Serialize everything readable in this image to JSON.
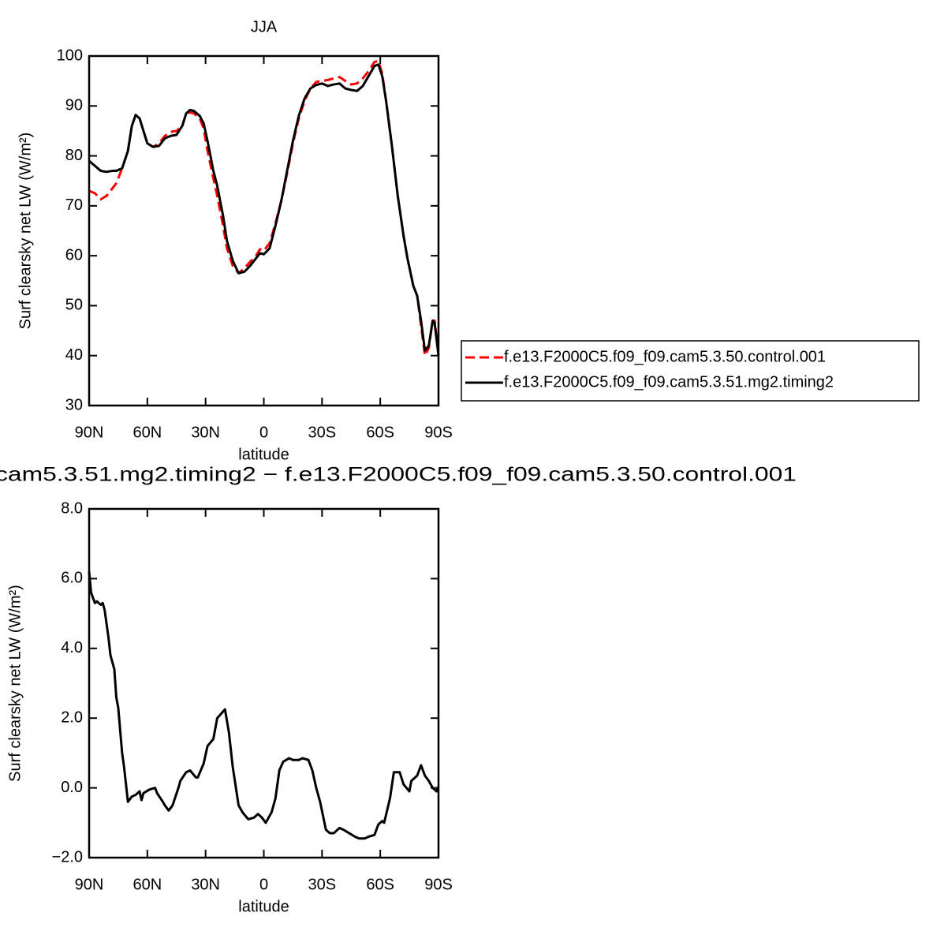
{
  "chart_data": [
    {
      "type": "line",
      "title": "JJA",
      "xlabel": "latitude",
      "ylabel": "Surf clearsky net LW (W/m²)",
      "x": [
        90,
        87,
        84,
        81,
        78,
        76,
        73,
        70,
        68,
        66,
        64,
        62,
        60,
        57,
        54,
        51,
        48,
        45,
        42,
        40,
        38,
        36,
        33,
        31,
        29,
        26,
        24,
        21,
        19,
        16,
        13,
        10,
        7,
        4,
        2,
        0,
        -3,
        -6,
        -9,
        -12,
        -15,
        -18,
        -21,
        -24,
        -27,
        -30,
        -33,
        -36,
        -39,
        -42,
        -45,
        -48,
        -51,
        -54,
        -57,
        -59,
        -61,
        -63,
        -66,
        -69,
        -72,
        -74,
        -77,
        -79,
        -81,
        -83,
        -85,
        -87,
        -88,
        -90
      ],
      "xlim": [
        90,
        -90
      ],
      "xticks": [
        {
          "value": 90,
          "label": "90N"
        },
        {
          "value": 60,
          "label": "60N"
        },
        {
          "value": 30,
          "label": "30N"
        },
        0,
        {
          "value": -30,
          "label": "30S"
        },
        {
          "value": -60,
          "label": "60S"
        },
        {
          "value": -90,
          "label": "90S"
        }
      ],
      "ylim": [
        30,
        100
      ],
      "yticks": [
        30,
        40,
        50,
        60,
        70,
        80,
        90,
        100
      ],
      "legend": "right",
      "series": [
        {
          "name": "f.e13.F2000C5.f09_f09.cam5.3.50.control.001",
          "color": "#ff0000",
          "line_style": "dashed",
          "values": [
            73,
            72.5,
            71.3,
            72,
            73.5,
            74.5,
            77.5,
            81,
            86,
            88.2,
            87.5,
            85,
            82.5,
            81.8,
            82.5,
            84,
            84.8,
            85,
            86,
            88.5,
            88.7,
            88.5,
            87.5,
            85.5,
            81,
            75.5,
            72,
            66,
            61.5,
            58,
            56.5,
            57.5,
            58.8,
            60,
            61.3,
            61,
            62.5,
            66.5,
            71,
            76.5,
            82.5,
            87.5,
            91,
            93.5,
            94.8,
            95,
            95.2,
            95.5,
            95.8,
            95,
            94.3,
            94.5,
            95.5,
            97,
            98.8,
            99,
            96.5,
            91,
            82,
            72,
            64,
            59.5,
            54,
            52,
            46,
            40,
            41.5,
            47,
            47,
            40.5
          ]
        },
        {
          "name": "f.e13.F2000C5.f09_f09.cam5.3.51.mg2.timing2",
          "color": "#000000",
          "line_style": "solid",
          "values": [
            79,
            78,
            77,
            76.8,
            77,
            77,
            77.5,
            81,
            86,
            88.2,
            87.5,
            85,
            82.5,
            81.8,
            82,
            83.5,
            84,
            84.2,
            86,
            88.5,
            89.2,
            89,
            88,
            86.5,
            83,
            77,
            74,
            68,
            63,
            59,
            56.5,
            56.8,
            58,
            59.5,
            60.5,
            60.3,
            61.5,
            66,
            71,
            77,
            83,
            88,
            91.5,
            93.5,
            94.2,
            94.5,
            94,
            94.3,
            94.5,
            93.5,
            93.2,
            93,
            94,
            96,
            98,
            98.3,
            96,
            91,
            82,
            72,
            64,
            59.5,
            54,
            52,
            47,
            41,
            42,
            47,
            46.5,
            40
          ]
        }
      ]
    },
    {
      "type": "line",
      "title": "cam5.3.51.mg2.timing2 − f.e13.F2000C5.f09_f09.cam5.3.50.control.001",
      "xlabel": "latitude",
      "ylabel": "Surf clearsky net LW (W/m²)",
      "x": [
        90,
        89,
        87,
        86,
        84,
        83,
        82,
        80,
        79,
        77,
        76,
        75,
        73,
        72,
        70,
        68,
        66,
        64,
        63,
        62,
        59,
        56,
        55,
        52,
        51,
        49,
        47,
        44,
        43,
        40,
        38,
        35,
        34,
        31,
        29,
        26,
        24,
        20,
        18,
        16,
        13,
        11,
        8,
        5,
        3,
        1,
        -1,
        -4,
        -6,
        -8,
        -10,
        -13,
        -15,
        -18,
        -20,
        -23,
        -25,
        -27,
        -29,
        -32,
        -34,
        -36,
        -39,
        -41,
        -44,
        -47,
        -49,
        -52,
        -54,
        -57,
        -59,
        -61,
        -62,
        -65,
        -67,
        -70,
        -72,
        -75,
        -76,
        -79,
        -81,
        -83,
        -85,
        -87,
        -89,
        -90
      ],
      "xlim": [
        90,
        -90
      ],
      "xticks": [
        {
          "value": 90,
          "label": "90N"
        },
        {
          "value": 60,
          "label": "60N"
        },
        {
          "value": 30,
          "label": "30N"
        },
        0,
        {
          "value": -30,
          "label": "30S"
        },
        {
          "value": -60,
          "label": "60S"
        },
        {
          "value": -90,
          "label": "90S"
        }
      ],
      "ylim": [
        -2,
        8
      ],
      "yticks": [
        {
          "value": -2,
          "label": "−2.0"
        },
        {
          "value": 0,
          "label": "0.0"
        },
        {
          "value": 2,
          "label": "2.0"
        },
        {
          "value": 4,
          "label": "4.0"
        },
        {
          "value": 6,
          "label": "6.0"
        },
        {
          "value": 8,
          "label": "8.0"
        }
      ],
      "series": [
        {
          "color": "#000000",
          "line_style": "solid",
          "values": [
            6.2,
            5.6,
            5.3,
            5.35,
            5.25,
            5.3,
            5.1,
            4.3,
            3.8,
            3.4,
            2.6,
            2.3,
            1.0,
            0.6,
            -0.4,
            -0.25,
            -0.2,
            -0.1,
            -0.35,
            -0.15,
            -0.05,
            0.0,
            -0.15,
            -0.4,
            -0.5,
            -0.65,
            -0.5,
            0.0,
            0.2,
            0.45,
            0.5,
            0.3,
            0.3,
            0.7,
            1.2,
            1.4,
            2.0,
            2.25,
            1.6,
            0.6,
            -0.5,
            -0.7,
            -0.9,
            -0.85,
            -0.75,
            -0.85,
            -1.0,
            -0.7,
            -0.3,
            0.5,
            0.75,
            0.85,
            0.8,
            0.8,
            0.85,
            0.8,
            0.5,
            0.0,
            -0.4,
            -1.2,
            -1.3,
            -1.3,
            -1.15,
            -1.2,
            -1.3,
            -1.4,
            -1.45,
            -1.45,
            -1.4,
            -1.35,
            -1.05,
            -0.95,
            -1.0,
            -0.3,
            0.45,
            0.45,
            0.1,
            -0.1,
            0.2,
            0.35,
            0.65,
            0.35,
            0.2,
            0.0,
            -0.1,
            0.05
          ]
        }
      ]
    }
  ]
}
